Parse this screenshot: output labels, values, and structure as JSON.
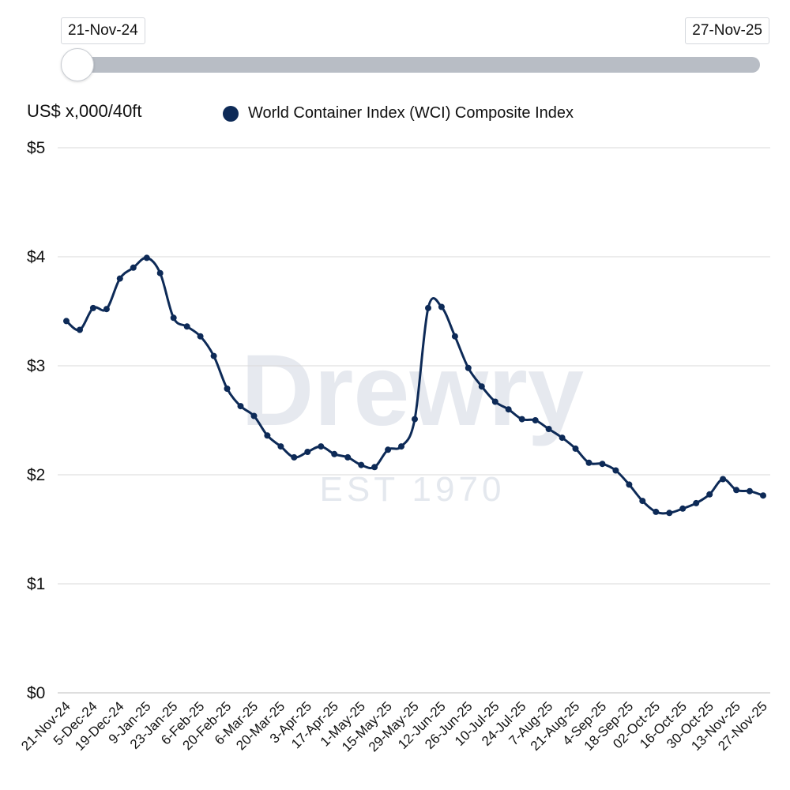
{
  "range_slider": {
    "start_label": "21-Nov-24",
    "end_label": "27-Nov-25"
  },
  "watermark": {
    "brand": "Drewry",
    "tagline": "EST 1970"
  },
  "colors": {
    "series": "#0d2a57",
    "grid": "#d9d9d9",
    "watermark": "#dde2ea"
  },
  "chart_data": {
    "type": "line",
    "title": "",
    "ylabel": "US$ x,000/40ft",
    "xlabel": "",
    "ylim": [
      0,
      5
    ],
    "yticks": [
      {
        "value": 0,
        "label": "$0"
      },
      {
        "value": 1,
        "label": "$1"
      },
      {
        "value": 2,
        "label": "$2"
      },
      {
        "value": 3,
        "label": "$3"
      },
      {
        "value": 4,
        "label": "$4"
      },
      {
        "value": 5,
        "label": "$5"
      }
    ],
    "xtick_labels": [
      "21-Nov-24",
      "5-Dec-24",
      "19-Dec-24",
      "9-Jan-25",
      "23-Jan-25",
      "6-Feb-25",
      "20-Feb-25",
      "6-Mar-25",
      "20-Mar-25",
      "3-Apr-25",
      "17-Apr-25",
      "1-May-25",
      "15-May-25",
      "29-May-25",
      "12-Jun-25",
      "26-Jun-25",
      "10-Jul-25",
      "24-Jul-25",
      "7-Aug-25",
      "21-Aug-25",
      "4-Sep-25",
      "18-Sep-25",
      "02-Oct-25",
      "16-Oct-25",
      "30-Oct-25",
      "13-Nov-25",
      "27-Nov-25"
    ],
    "legend": {
      "position": "top",
      "entries": [
        "World Container Index (WCI) Composite Index"
      ]
    },
    "series": [
      {
        "name": "World Container Index (WCI) Composite Index",
        "values": [
          3.41,
          3.33,
          3.53,
          3.52,
          3.8,
          3.9,
          3.99,
          3.85,
          3.44,
          3.36,
          3.27,
          3.09,
          2.79,
          2.63,
          2.54,
          2.36,
          2.26,
          2.16,
          2.21,
          2.26,
          2.19,
          2.16,
          2.09,
          2.07,
          2.23,
          2.26,
          2.51,
          3.53,
          3.54,
          3.27,
          2.98,
          2.81,
          2.67,
          2.6,
          2.51,
          2.5,
          2.42,
          2.34,
          2.24,
          2.11,
          2.1,
          2.04,
          1.91,
          1.76,
          1.66,
          1.65,
          1.69,
          1.74,
          1.82,
          1.96,
          1.86,
          1.85,
          1.81
        ]
      }
    ]
  }
}
